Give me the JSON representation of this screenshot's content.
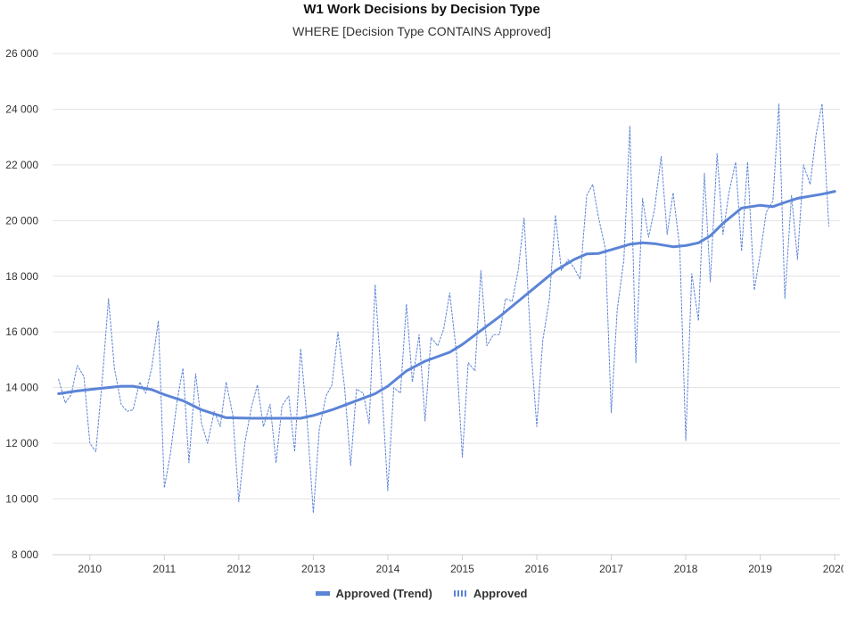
{
  "chart_data": {
    "type": "line",
    "title": "W1 Work Decisions by Decision Type",
    "subtitle": "WHERE [Decision Type CONTAINS Approved]",
    "ylim": [
      8000,
      26000
    ],
    "y_ticks": [
      8000,
      10000,
      12000,
      14000,
      16000,
      18000,
      20000,
      22000,
      24000,
      26000
    ],
    "y_tick_labels": [
      "8 000",
      "10 000",
      "12 000",
      "14 000",
      "16 000",
      "18 000",
      "20 000",
      "22 000",
      "24 000",
      "26 000"
    ],
    "x_ticks": [
      2010,
      2011,
      2012,
      2013,
      2014,
      2015,
      2016,
      2017,
      2018,
      2019,
      2020
    ],
    "x_range": [
      2009.5,
      2020.07
    ],
    "grid": "horizontal",
    "legend_placement": "bottom-center",
    "colors": {
      "series": "#5b84d6",
      "grid": "#e3e3e3"
    },
    "series": [
      {
        "name": "Approved (Trend)",
        "style": "solid",
        "x": [
          2009.58,
          2009.83,
          2010.17,
          2010.42,
          2010.58,
          2010.83,
          2011.0,
          2011.25,
          2011.5,
          2011.83,
          2012.17,
          2012.5,
          2012.67,
          2012.83,
          2013.0,
          2013.25,
          2013.5,
          2013.83,
          2014.0,
          2014.25,
          2014.5,
          2014.83,
          2015.0,
          2015.25,
          2015.5,
          2015.75,
          2016.0,
          2016.25,
          2016.5,
          2016.67,
          2016.83,
          2017.0,
          2017.25,
          2017.42,
          2017.58,
          2017.83,
          2018.0,
          2018.17,
          2018.33,
          2018.5,
          2018.75,
          2019.0,
          2019.17,
          2019.33,
          2019.5,
          2019.83,
          2020.0
        ],
        "values": [
          13780,
          13880,
          13980,
          14050,
          14050,
          13930,
          13750,
          13530,
          13200,
          12920,
          12900,
          12900,
          12900,
          12900,
          13000,
          13200,
          13450,
          13780,
          14050,
          14600,
          14950,
          15270,
          15550,
          16050,
          16550,
          17100,
          17650,
          18200,
          18600,
          18800,
          18820,
          18950,
          19150,
          19200,
          19170,
          19060,
          19100,
          19200,
          19450,
          19900,
          20450,
          20550,
          20500,
          20650,
          20800,
          20950,
          21050
        ]
      },
      {
        "name": "Approved",
        "style": "dashed",
        "x": [
          2009.58,
          2009.67,
          2009.75,
          2009.83,
          2009.92,
          2010.0,
          2010.08,
          2010.17,
          2010.25,
          2010.33,
          2010.42,
          2010.5,
          2010.58,
          2010.67,
          2010.75,
          2010.83,
          2010.92,
          2011.0,
          2011.08,
          2011.17,
          2011.25,
          2011.33,
          2011.42,
          2011.5,
          2011.58,
          2011.67,
          2011.75,
          2011.83,
          2011.92,
          2012.0,
          2012.08,
          2012.17,
          2012.25,
          2012.33,
          2012.42,
          2012.5,
          2012.58,
          2012.67,
          2012.75,
          2012.83,
          2012.92,
          2013.0,
          2013.08,
          2013.17,
          2013.25,
          2013.33,
          2013.42,
          2013.5,
          2013.58,
          2013.67,
          2013.75,
          2013.83,
          2013.92,
          2014.0,
          2014.08,
          2014.17,
          2014.25,
          2014.33,
          2014.42,
          2014.5,
          2014.58,
          2014.67,
          2014.75,
          2014.83,
          2014.92,
          2015.0,
          2015.08,
          2015.17,
          2015.25,
          2015.33,
          2015.42,
          2015.5,
          2015.58,
          2015.67,
          2015.75,
          2015.83,
          2015.92,
          2016.0,
          2016.08,
          2016.17,
          2016.25,
          2016.33,
          2016.42,
          2016.5,
          2016.58,
          2016.67,
          2016.75,
          2016.83,
          2016.92,
          2017.0,
          2017.08,
          2017.17,
          2017.25,
          2017.33,
          2017.42,
          2017.5,
          2017.58,
          2017.67,
          2017.75,
          2017.83,
          2017.92,
          2018.0,
          2018.08,
          2018.17,
          2018.25,
          2018.33,
          2018.42,
          2018.5,
          2018.58,
          2018.67,
          2018.75,
          2018.83,
          2018.92,
          2019.0,
          2019.08,
          2019.17,
          2019.25,
          2019.33,
          2019.42,
          2019.5,
          2019.58,
          2019.67,
          2019.75,
          2019.83,
          2019.92
        ],
        "values": [
          14300,
          13450,
          13750,
          14800,
          14400,
          12000,
          11700,
          14400,
          17200,
          14700,
          13400,
          13150,
          13200,
          14200,
          13800,
          14700,
          16400,
          10400,
          11600,
          13500,
          14700,
          11300,
          14500,
          12700,
          12000,
          13150,
          12600,
          14200,
          13000,
          9900,
          12000,
          13300,
          14100,
          12600,
          13400,
          11300,
          13350,
          13700,
          11700,
          15400,
          12700,
          9500,
          12500,
          13700,
          14100,
          16000,
          14000,
          11200,
          13950,
          13800,
          12700,
          17700,
          14000,
          10300,
          14000,
          13800,
          17000,
          14200,
          15900,
          12800,
          15800,
          15500,
          16100,
          17400,
          15300,
          11500,
          14900,
          14600,
          18200,
          15500,
          15900,
          15900,
          17200,
          17100,
          18200,
          20100,
          15500,
          12600,
          15700,
          17200,
          20200,
          18200,
          18600,
          18300,
          17900,
          20900,
          21300,
          20100,
          19000,
          13100,
          16800,
          18600,
          23400,
          14900,
          20800,
          19400,
          20400,
          22300,
          19500,
          21000,
          19000,
          12100,
          18100,
          16400,
          21700,
          17800,
          22400,
          19500,
          21000,
          22100,
          18900,
          22100,
          17500,
          18800,
          20300,
          20700,
          24200,
          17200,
          20900,
          18600,
          22000,
          21300,
          23100,
          24200,
          19800
        ]
      }
    ]
  }
}
